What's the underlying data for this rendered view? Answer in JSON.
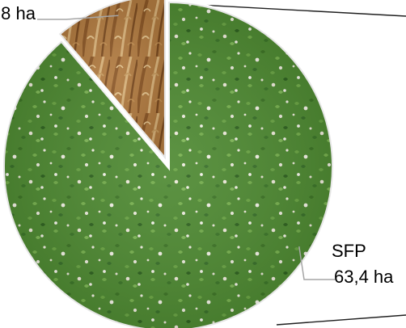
{
  "chart_data": {
    "type": "pie",
    "title": "",
    "slices": [
      {
        "label": "SFP",
        "value_label": "63,4 ha",
        "value": 63.4,
        "texture": "clover-meadow",
        "color": "#4f8a33"
      },
      {
        "label": "",
        "value_label": "8 ha",
        "value": 8,
        "texture": "wheat-field",
        "color": "#b5834b"
      }
    ],
    "legend": "none",
    "leader_lines": true,
    "connector_lines": true
  }
}
